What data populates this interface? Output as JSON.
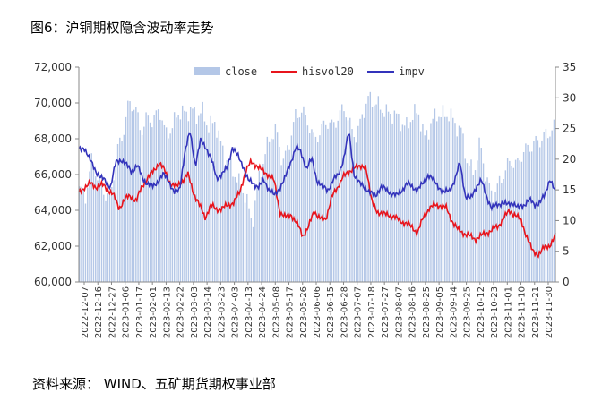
{
  "title": "图6：沪铜期权隐含波动率走势",
  "source": "资料来源：  WIND、五矿期货期权事业部",
  "chart_data": {
    "type": "bar+line",
    "legend": [
      "close",
      "hisvol20",
      "impv"
    ],
    "legend_position": "top-center",
    "colors": {
      "close": "#b4c7e7",
      "hisvol20": "#e8141c",
      "impv": "#3333bb"
    },
    "grid": false,
    "left_axis": {
      "min": 60000,
      "max": 72000,
      "ticks": [
        "60,000",
        "62,000",
        "64,000",
        "66,000",
        "68,000",
        "70,000",
        "72,000"
      ]
    },
    "right_axis": {
      "min": 0,
      "max": 35,
      "ticks": [
        "0",
        "5",
        "10",
        "15",
        "20",
        "25",
        "30",
        "35"
      ]
    },
    "x_labels": [
      "2022-12-07",
      "2022-12-16",
      "2022-12-27",
      "2023-01-06",
      "2023-01-17",
      "2023-02-01",
      "2023-02-13",
      "2023-02-22",
      "2023-03-03",
      "2023-03-14",
      "2023-03-23",
      "2023-04-03",
      "2023-04-13",
      "2023-04-24",
      "2023-05-08",
      "2023-05-17",
      "2023-05-26",
      "2023-06-06",
      "2023-06-15",
      "2023-06-28",
      "2023-07-07",
      "2023-07-18",
      "2023-07-27",
      "2023-08-07",
      "2023-08-16",
      "2023-08-25",
      "2023-09-05",
      "2023-09-14",
      "2023-09-25",
      "2023-10-12",
      "2023-10-23",
      "2023-11-01",
      "2023-11-10",
      "2023-11-21",
      "2023-11-30"
    ],
    "close_anchors": [
      65200,
      64800,
      66800,
      65800,
      65000,
      64600,
      67200,
      68200,
      70000,
      69800,
      68400,
      69200,
      69000,
      69700,
      68200,
      68600,
      69500,
      69400,
      69600,
      69300,
      69500,
      68600,
      69000,
      67600,
      66700,
      66200,
      65400,
      64800,
      63200,
      65600,
      67000,
      68200,
      68400,
      66600,
      67700,
      69200,
      69600,
      69000,
      68000,
      68300,
      69000,
      68700,
      69200,
      69800,
      68600,
      68100,
      69500,
      70300,
      70000,
      69700,
      69400,
      69400,
      69000,
      68600,
      69300,
      69500,
      68000,
      68800,
      69400,
      69300,
      69400,
      68800,
      68400,
      66600,
      66100,
      67800,
      65800,
      64800,
      65400,
      66200,
      66800,
      66500,
      67300,
      67500,
      67800,
      68000,
      68300,
      68600
    ],
    "hisvol20_anchors": [
      14.5,
      15.5,
      16.0,
      15.5,
      15.8,
      15.2,
      14.2,
      12.0,
      13.5,
      14.0,
      13.2,
      15.5,
      17.0,
      18.0,
      19.5,
      18.0,
      16.0,
      15.5,
      16.5,
      17.5,
      14.5,
      12.5,
      10.5,
      12.5,
      11.8,
      12.0,
      12.5,
      13.0,
      14.5,
      18.0,
      19.5,
      19.0,
      18.0,
      17.5,
      16.5,
      11.5,
      10.5,
      11.0,
      9.5,
      7.5,
      9.0,
      11.5,
      10.5,
      10.0,
      14.0,
      15.0,
      17.5,
      17.5,
      19.0,
      18.5,
      19.0,
      13.0,
      11.5,
      11.0,
      11.0,
      10.5,
      10.0,
      9.5,
      9.0,
      8.0,
      10.5,
      12.0,
      12.5,
      12.5,
      12.0,
      10.0,
      8.5,
      8.0,
      7.5,
      7.0,
      7.5,
      8.0,
      8.5,
      9.0,
      10.5,
      11.5,
      11.0,
      10.0,
      7.5,
      5.0,
      4.5,
      5.5,
      6.0,
      7.5
    ],
    "impv_anchors": [
      21.5,
      22.0,
      20.0,
      18.5,
      17.0,
      16.5,
      15.5,
      19.5,
      20.0,
      19.0,
      18.0,
      19.0,
      17.0,
      16.0,
      15.5,
      16.5,
      17.5,
      16.5,
      14.5,
      15.0,
      21.0,
      24.5,
      19.0,
      23.0,
      22.0,
      20.0,
      17.0,
      17.5,
      18.5,
      22.0,
      20.5,
      19.0,
      16.5,
      16.0,
      15.5,
      16.5,
      15.0,
      14.0,
      15.5,
      17.0,
      19.5,
      22.0,
      21.0,
      18.5,
      20.0,
      16.5,
      15.5,
      15.0,
      16.5,
      17.5,
      20.0,
      24.5,
      17.5,
      16.0,
      15.5,
      14.5,
      14.0,
      15.5,
      15.0,
      14.5,
      14.0,
      15.0,
      16.0,
      15.5,
      15.0,
      16.0,
      17.5,
      16.5,
      15.5,
      14.5,
      15.0,
      16.5,
      19.5,
      14.0,
      13.5,
      15.5,
      16.5,
      14.0,
      12.0,
      12.5,
      13.0,
      12.5,
      13.0,
      12.0,
      12.5,
      13.5,
      12.5,
      13.0,
      14.0,
      17.0,
      14.5
    ]
  }
}
